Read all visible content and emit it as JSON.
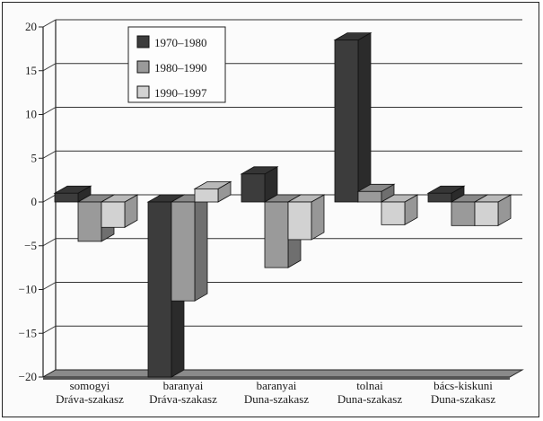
{
  "chart_data": {
    "type": "bar",
    "title": "",
    "xlabel": "",
    "ylabel": "",
    "ylim": [
      -20,
      20
    ],
    "yticks": [
      -20,
      -15,
      -10,
      -5,
      0,
      5,
      10,
      15,
      20
    ],
    "ytick_labels": [
      "−20",
      "−15",
      "−10",
      "−5",
      "0",
      "5",
      "10",
      "15",
      "20"
    ],
    "categories": [
      [
        "somogyi",
        "Dráva-szakasz"
      ],
      [
        "baranyai",
        "Dráva-szakasz"
      ],
      [
        "baranyai",
        "Duna-szakasz"
      ],
      [
        "tolnai",
        "Duna-szakasz"
      ],
      [
        "bács-kiskuni",
        "Duna-szakasz"
      ]
    ],
    "series": [
      {
        "name": "1970–1980",
        "color": "#3c3c3c",
        "values": [
          1.0,
          -20,
          3.2,
          18.5,
          1.0
        ]
      },
      {
        "name": "1980–1990",
        "color": "#9a9a9a",
        "values": [
          -4.5,
          -11.3,
          -7.5,
          1.2,
          -2.7
        ]
      },
      {
        "name": "1990–1997",
        "color": "#d2d2d2",
        "values": [
          -2.9,
          1.5,
          -4.3,
          -2.6,
          -2.7
        ]
      }
    ],
    "grid": true,
    "legend_position": "top-left",
    "three_d": true
  }
}
